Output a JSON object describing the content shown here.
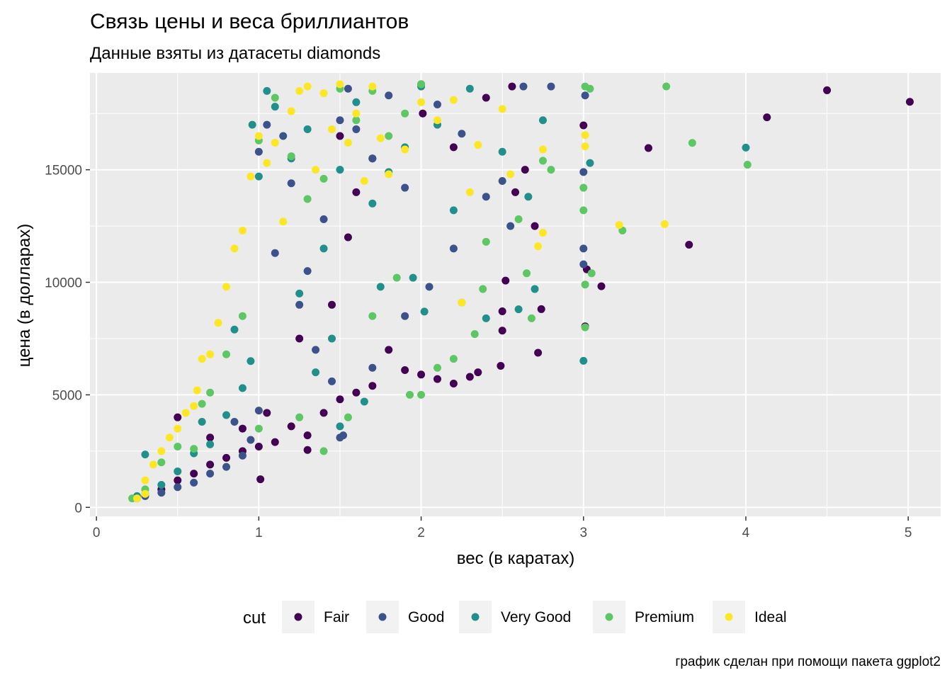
{
  "chart_data": {
    "type": "scatter",
    "title": "Связь цены и веса бриллиантов",
    "subtitle": "Данные взяты из датасеты diamonds",
    "xlabel": "вес (в каратах)",
    "ylabel": "цена (в долларах)",
    "caption": "график сделан при помощи пакета ggplot2",
    "xlim": [
      -0.04,
      5.2
    ],
    "ylim": [
      -400,
      19300
    ],
    "x_ticks": [
      0,
      1,
      2,
      3,
      4,
      5
    ],
    "x_tick_labels": [
      "0",
      "1",
      "2",
      "3",
      "4",
      "5"
    ],
    "y_ticks": [
      0,
      5000,
      10000,
      15000
    ],
    "y_tick_labels": [
      "0",
      "5000",
      "10000",
      "15000"
    ],
    "grid": true,
    "background": "#EBEBEB",
    "legend": {
      "title": "cut",
      "placement": "bottom",
      "entries": [
        {
          "name": "Fair",
          "color": "#440154"
        },
        {
          "name": "Good",
          "color": "#3B528B"
        },
        {
          "name": "Very Good",
          "color": "#21908C"
        },
        {
          "name": "Premium",
          "color": "#5DC863"
        },
        {
          "name": "Ideal",
          "color": "#FDE725"
        }
      ]
    },
    "series": [
      {
        "name": "Fair",
        "color": "#440154",
        "points": [
          [
            5.01,
            18018
          ],
          [
            4.5,
            18531
          ],
          [
            4.13,
            17329
          ],
          [
            3.4,
            15964
          ],
          [
            3.65,
            11668
          ],
          [
            3.11,
            9823
          ],
          [
            3.02,
            10577
          ],
          [
            3.0,
            16970
          ],
          [
            3.01,
            8040
          ],
          [
            2.74,
            8807
          ],
          [
            2.72,
            6870
          ],
          [
            2.5,
            7854
          ],
          [
            2.5,
            8711
          ],
          [
            2.49,
            6289
          ],
          [
            2.52,
            10076
          ],
          [
            2.64,
            15000
          ],
          [
            2.7,
            12500
          ],
          [
            2.58,
            14000
          ],
          [
            2.35,
            6000
          ],
          [
            2.3,
            5800
          ],
          [
            2.2,
            5500
          ],
          [
            2.1,
            5700
          ],
          [
            2.0,
            5900
          ],
          [
            1.9,
            6100
          ],
          [
            1.8,
            7000
          ],
          [
            1.7,
            5400
          ],
          [
            1.6,
            5100
          ],
          [
            1.5,
            4800
          ],
          [
            1.4,
            4200
          ],
          [
            1.3,
            3200
          ],
          [
            1.3,
            2550
          ],
          [
            1.2,
            3600
          ],
          [
            1.1,
            2900
          ],
          [
            1.0,
            2700
          ],
          [
            1.01,
            1250
          ],
          [
            0.9,
            2500
          ],
          [
            0.8,
            2200
          ],
          [
            0.7,
            1900
          ],
          [
            0.6,
            1500
          ],
          [
            0.5,
            1200
          ],
          [
            0.5,
            4000
          ],
          [
            0.7,
            3100
          ],
          [
            0.9,
            3500
          ],
          [
            1.05,
            4200
          ],
          [
            1.25,
            7500
          ],
          [
            1.5,
            16500
          ],
          [
            1.6,
            14000
          ],
          [
            1.7,
            15500
          ],
          [
            2.01,
            17500
          ],
          [
            2.2,
            16000
          ],
          [
            2.4,
            18200
          ],
          [
            2.56,
            18700
          ],
          [
            1.45,
            9000
          ],
          [
            1.55,
            12000
          ],
          [
            0.4,
            800
          ]
        ]
      },
      {
        "name": "Good",
        "color": "#3B528B",
        "points": [
          [
            2.8,
            18700
          ],
          [
            3.01,
            18300
          ],
          [
            3.0,
            14900
          ],
          [
            3.0,
            11500
          ],
          [
            3.0,
            10800
          ],
          [
            2.63,
            18700
          ],
          [
            2.5,
            14500
          ],
          [
            2.55,
            12500
          ],
          [
            2.4,
            13800
          ],
          [
            2.25,
            16600
          ],
          [
            2.1,
            17900
          ],
          [
            2.0,
            18800
          ],
          [
            1.9,
            14200
          ],
          [
            1.8,
            18300
          ],
          [
            1.7,
            15500
          ],
          [
            1.6,
            16800
          ],
          [
            1.55,
            18600
          ],
          [
            1.5,
            17200
          ],
          [
            1.52,
            3200
          ],
          [
            1.5,
            3100
          ],
          [
            1.4,
            12800
          ],
          [
            1.3,
            10500
          ],
          [
            1.2,
            14400
          ],
          [
            1.1,
            11300
          ],
          [
            1.0,
            15800
          ],
          [
            1.05,
            17000
          ],
          [
            0.95,
            3000
          ],
          [
            0.9,
            2300
          ],
          [
            0.8,
            1800
          ],
          [
            0.7,
            1500
          ],
          [
            0.6,
            1100
          ],
          [
            0.5,
            900
          ],
          [
            0.4,
            650
          ],
          [
            0.3,
            500
          ],
          [
            0.25,
            400
          ],
          [
            1.15,
            16500
          ],
          [
            1.25,
            9000
          ],
          [
            1.35,
            7000
          ],
          [
            1.45,
            5600
          ],
          [
            1.7,
            6200
          ],
          [
            1.9,
            8500
          ],
          [
            2.05,
            9800
          ],
          [
            2.2,
            11500
          ],
          [
            0.85,
            3800
          ],
          [
            1.0,
            4300
          ]
        ]
      },
      {
        "name": "Very Good",
        "color": "#21908C",
        "points": [
          [
            4.0,
            15984
          ],
          [
            3.04,
            15300
          ],
          [
            3.0,
            6512
          ],
          [
            2.75,
            17200
          ],
          [
            2.66,
            13800
          ],
          [
            2.7,
            9700
          ],
          [
            2.6,
            8800
          ],
          [
            2.4,
            8400
          ],
          [
            2.3,
            18600
          ],
          [
            2.1,
            17000
          ],
          [
            2.0,
            18700
          ],
          [
            2.02,
            8700
          ],
          [
            1.9,
            16000
          ],
          [
            1.8,
            14900
          ],
          [
            1.7,
            13500
          ],
          [
            1.6,
            18000
          ],
          [
            1.5,
            15000
          ],
          [
            1.5,
            3600
          ],
          [
            1.4,
            11500
          ],
          [
            1.3,
            16800
          ],
          [
            1.2,
            15500
          ],
          [
            1.1,
            17800
          ],
          [
            1.05,
            18500
          ],
          [
            1.0,
            14700
          ],
          [
            0.96,
            17000
          ],
          [
            0.95,
            6500
          ],
          [
            0.9,
            5300
          ],
          [
            0.8,
            4100
          ],
          [
            0.7,
            2800
          ],
          [
            0.6,
            2400
          ],
          [
            0.5,
            1600
          ],
          [
            0.4,
            1000
          ],
          [
            0.3,
            2350
          ],
          [
            0.3,
            600
          ],
          [
            0.25,
            500
          ],
          [
            1.25,
            9500
          ],
          [
            1.35,
            6000
          ],
          [
            1.45,
            7500
          ],
          [
            1.65,
            4700
          ],
          [
            1.75,
            9800
          ],
          [
            1.95,
            10200
          ],
          [
            2.2,
            13200
          ],
          [
            2.5,
            15800
          ],
          [
            0.85,
            7900
          ],
          [
            0.65,
            3800
          ]
        ]
      },
      {
        "name": "Premium",
        "color": "#5DC863",
        "points": [
          [
            3.51,
            18701
          ],
          [
            3.01,
            18700
          ],
          [
            3.04,
            18600
          ],
          [
            3.67,
            16193
          ],
          [
            4.01,
            15223
          ],
          [
            3.24,
            12300
          ],
          [
            3.05,
            10400
          ],
          [
            3.01,
            9900
          ],
          [
            3.0,
            14200
          ],
          [
            3.0,
            13200
          ],
          [
            3.01,
            8000
          ],
          [
            2.8,
            15000
          ],
          [
            2.75,
            15400
          ],
          [
            2.65,
            10400
          ],
          [
            2.6,
            12800
          ],
          [
            2.68,
            8400
          ],
          [
            2.38,
            9700
          ],
          [
            2.33,
            7700
          ],
          [
            2.25,
            9100
          ],
          [
            2.2,
            6600
          ],
          [
            2.1,
            6200
          ],
          [
            2.0,
            5000
          ],
          [
            1.93,
            5000
          ],
          [
            2.0,
            18800
          ],
          [
            1.9,
            17500
          ],
          [
            1.8,
            16500
          ],
          [
            1.7,
            18500
          ],
          [
            1.6,
            17200
          ],
          [
            1.5,
            18600
          ],
          [
            1.4,
            14600
          ],
          [
            1.3,
            13700
          ],
          [
            1.2,
            15600
          ],
          [
            1.1,
            18200
          ],
          [
            1.0,
            16300
          ],
          [
            0.9,
            8500
          ],
          [
            0.8,
            6800
          ],
          [
            0.7,
            5100
          ],
          [
            0.65,
            4600
          ],
          [
            0.6,
            2600
          ],
          [
            0.5,
            2700
          ],
          [
            0.4,
            2000
          ],
          [
            0.3,
            800
          ],
          [
            0.22,
            400
          ],
          [
            1.25,
            4000
          ],
          [
            1.4,
            2500
          ],
          [
            1.55,
            4000
          ],
          [
            1.7,
            8500
          ],
          [
            1.85,
            10200
          ],
          [
            2.4,
            11800
          ],
          [
            1.0,
            3500
          ]
        ]
      },
      {
        "name": "Ideal",
        "color": "#FDE725",
        "points": [
          [
            3.5,
            12587
          ],
          [
            3.22,
            12545
          ],
          [
            3.01,
            16538
          ],
          [
            3.01,
            16037
          ],
          [
            2.75,
            15900
          ],
          [
            2.72,
            11600
          ],
          [
            2.75,
            12200
          ],
          [
            2.55,
            14800
          ],
          [
            2.5,
            17700
          ],
          [
            2.35,
            16100
          ],
          [
            2.25,
            9100
          ],
          [
            2.2,
            18100
          ],
          [
            2.1,
            17200
          ],
          [
            2.0,
            18000
          ],
          [
            1.9,
            15900
          ],
          [
            1.8,
            14800
          ],
          [
            1.7,
            18700
          ],
          [
            1.6,
            17500
          ],
          [
            1.55,
            16200
          ],
          [
            1.5,
            18800
          ],
          [
            1.4,
            18400
          ],
          [
            1.3,
            18700
          ],
          [
            1.25,
            18500
          ],
          [
            1.2,
            17600
          ],
          [
            1.1,
            16200
          ],
          [
            1.05,
            15300
          ],
          [
            1.0,
            16500
          ],
          [
            0.95,
            14700
          ],
          [
            0.9,
            12300
          ],
          [
            0.85,
            11500
          ],
          [
            0.8,
            9800
          ],
          [
            0.75,
            8200
          ],
          [
            0.7,
            6800
          ],
          [
            0.65,
            6600
          ],
          [
            0.62,
            5200
          ],
          [
            0.6,
            4500
          ],
          [
            0.55,
            4200
          ],
          [
            0.5,
            3500
          ],
          [
            0.45,
            3100
          ],
          [
            0.4,
            2500
          ],
          [
            0.35,
            1900
          ],
          [
            0.3,
            1200
          ],
          [
            0.3,
            600
          ],
          [
            0.25,
            400
          ],
          [
            1.15,
            12700
          ],
          [
            1.35,
            15000
          ],
          [
            1.45,
            16800
          ],
          [
            1.65,
            14500
          ],
          [
            1.75,
            16400
          ],
          [
            2.3,
            14000
          ]
        ]
      }
    ]
  }
}
